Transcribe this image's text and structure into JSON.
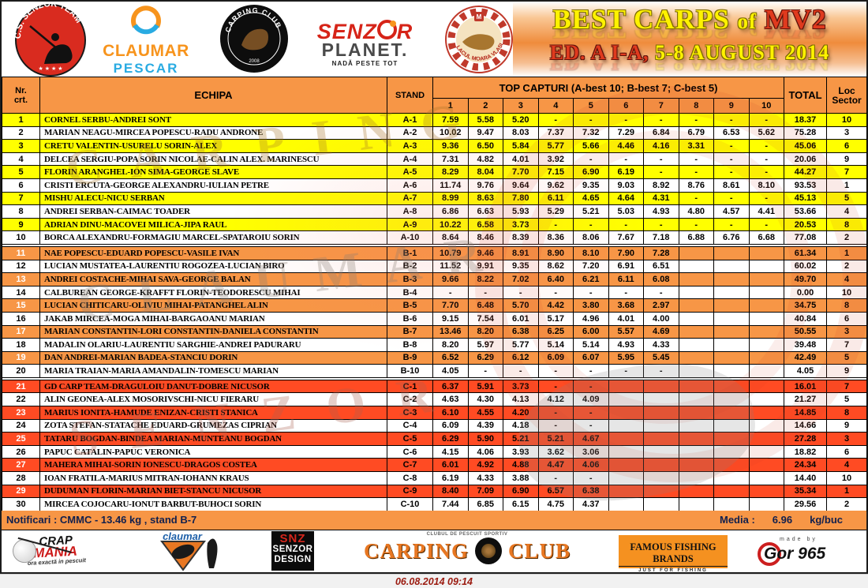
{
  "header": {
    "logos": {
      "senzor_team": {
        "arc_text": "C.S. SENZOR TEAM",
        "stars": "★ ★ ★ ★"
      },
      "claumar": {
        "line1": "CLAUMAR",
        "line2": "PESCAR"
      },
      "carping_club": {
        "arc_text": "CARPING CLUB",
        "year": "2008"
      },
      "senzor_planet": {
        "part1": "SENZ",
        "part2": "R",
        "line2": "PLANET.",
        "tagline": "NADĂ PESTE TOT"
      },
      "moara_vlasiei": {
        "arc_text": "LACUL MOARA VLASIEI 2"
      }
    },
    "title": {
      "line1_main": "BEST CARPS",
      "line1_of": "of",
      "line1_mv2": "MV2",
      "line2_red": "ED. A I-A,",
      "line2_yellow": "5-8 AUGUST 2014"
    }
  },
  "table": {
    "headers": {
      "nr": "Nr.\ncrt.",
      "echipa": "ECHIPA",
      "stand": "STAND",
      "top_capturi": "TOP CAPTURI (A-best 10; B-best 7; C-best 5)",
      "catch_cols": [
        "1",
        "2",
        "3",
        "4",
        "5",
        "6",
        "7",
        "8",
        "9",
        "10"
      ],
      "total": "TOTAL",
      "loc": "Loc\nSector"
    },
    "rows": [
      {
        "nr": "1",
        "team": "CORNEL SERBU-ANDREI SONT",
        "stand": "A-1",
        "c": [
          "7.59",
          "5.58",
          "5.20",
          "-",
          "-",
          "-",
          "-",
          "-",
          "-",
          "-"
        ],
        "total": "18.37",
        "loc": "10",
        "section": "A"
      },
      {
        "nr": "2",
        "team": "MARIAN NEAGU-MIRCEA POPESCU-RADU ANDRONE",
        "stand": "A-2",
        "c": [
          "10.02",
          "9.47",
          "8.03",
          "7.37",
          "7.32",
          "7.29",
          "6.84",
          "6.79",
          "6.53",
          "5.62"
        ],
        "total": "75.28",
        "loc": "3",
        "section": "A"
      },
      {
        "nr": "3",
        "team": "CRETU VALENTIN-USURELU SORIN-ALEX",
        "stand": "A-3",
        "c": [
          "9.36",
          "6.50",
          "5.84",
          "5.77",
          "5.66",
          "4.46",
          "4.16",
          "3.31",
          "-",
          "-"
        ],
        "total": "45.06",
        "loc": "6",
        "section": "A"
      },
      {
        "nr": "4",
        "team": "DELCEA SERGIU-POPA SORIN NICOLAE-CALIN ALEX. MARINESCU",
        "stand": "A-4",
        "c": [
          "7.31",
          "4.82",
          "4.01",
          "3.92",
          "-",
          "-",
          "-",
          "-",
          "-",
          "-"
        ],
        "total": "20.06",
        "loc": "9",
        "section": "A"
      },
      {
        "nr": "5",
        "team": "FLORIN ARANGHEL-ION SIMA-GEORGE SLAVE",
        "stand": "A-5",
        "c": [
          "8.29",
          "8.04",
          "7.70",
          "7.15",
          "6.90",
          "6.19",
          "-",
          "-",
          "-",
          "-"
        ],
        "total": "44.27",
        "loc": "7",
        "section": "A"
      },
      {
        "nr": "6",
        "team": "CRISTI ERCUTA-GEORGE ALEXANDRU-IULIAN PETRE",
        "stand": "A-6",
        "c": [
          "11.74",
          "9.76",
          "9.64",
          "9.62",
          "9.35",
          "9.03",
          "8.92",
          "8.76",
          "8.61",
          "8.10"
        ],
        "total": "93.53",
        "loc": "1",
        "section": "A"
      },
      {
        "nr": "7",
        "team": "MISHU ALECU-NICU SERBAN",
        "stand": "A-7",
        "c": [
          "8.99",
          "8.63",
          "7.80",
          "6.11",
          "4.65",
          "4.64",
          "4.31",
          "-",
          "-",
          "-"
        ],
        "total": "45.13",
        "loc": "5",
        "section": "A"
      },
      {
        "nr": "8",
        "team": "ANDREI SERBAN-CAIMAC TOADER",
        "stand": "A-8",
        "c": [
          "6.86",
          "6.63",
          "5.93",
          "5.29",
          "5.21",
          "5.03",
          "4.93",
          "4.80",
          "4.57",
          "4.41"
        ],
        "total": "53.66",
        "loc": "4",
        "section": "A"
      },
      {
        "nr": "9",
        "team": "ADRIAN DINU-MACOVEI MILICA-JIPA RAUL",
        "stand": "A-9",
        "c": [
          "10.22",
          "6.58",
          "3.73",
          "-",
          "-",
          "-",
          "-",
          "-",
          "-",
          "-"
        ],
        "total": "20.53",
        "loc": "8",
        "section": "A"
      },
      {
        "nr": "10",
        "team": "BORCA ALEXANDRU-FORMAGIU MARCEL-SPATAROIU SORIN",
        "stand": "A-10",
        "c": [
          "8.64",
          "8.46",
          "8.39",
          "8.36",
          "8.06",
          "7.67",
          "7.18",
          "6.88",
          "6.76",
          "6.68"
        ],
        "total": "77.08",
        "loc": "2",
        "section": "A"
      },
      {
        "nr": "11",
        "team": "NAE POPESCU-EDUARD POPESCU-VASILE IVAN",
        "stand": "B-1",
        "c": [
          "10.79",
          "9.46",
          "8.91",
          "8.90",
          "8.10",
          "7.90",
          "7.28",
          "",
          "",
          ""
        ],
        "total": "61.34",
        "loc": "1",
        "section": "B"
      },
      {
        "nr": "12",
        "team": "LUCIAN MUSTATEA-LAURENTIU ROGOZEA-LUCIAN BIRO",
        "stand": "B-2",
        "c": [
          "11.52",
          "9.91",
          "9.35",
          "8.62",
          "7.20",
          "6.91",
          "6.51",
          "",
          "",
          ""
        ],
        "total": "60.02",
        "loc": "2",
        "section": "B"
      },
      {
        "nr": "13",
        "team": "ANDREI COSTACHE-MIHAI SAVA-GEORGE BALAN",
        "stand": "B-3",
        "c": [
          "9.66",
          "8.22",
          "7.02",
          "6.40",
          "6.21",
          "6.11",
          "6.08",
          "",
          "",
          ""
        ],
        "total": "49.70",
        "loc": "4",
        "section": "B"
      },
      {
        "nr": "14",
        "team": "CALBUREAN GEORGE-KRAFFT FLORIN-TEODORESCU MIHAI",
        "stand": "B-4",
        "c": [
          "-",
          "-",
          "-",
          "-",
          "-",
          "-",
          "-",
          "",
          "",
          ""
        ],
        "total": "0.00",
        "loc": "10",
        "section": "B"
      },
      {
        "nr": "15",
        "team": "LUCIAN CHITICARU-OLIVIU MIHAI-PATANGHEL ALIN",
        "stand": "B-5",
        "c": [
          "7.70",
          "6.48",
          "5.70",
          "4.42",
          "3.80",
          "3.68",
          "2.97",
          "",
          "",
          ""
        ],
        "total": "34.75",
        "loc": "8",
        "section": "B"
      },
      {
        "nr": "16",
        "team": "JAKAB MIRCEA-MOGA MIHAI-BARGAOANU MARIAN",
        "stand": "B-6",
        "c": [
          "9.15",
          "7.54",
          "6.01",
          "5.17",
          "4.96",
          "4.01",
          "4.00",
          "",
          "",
          ""
        ],
        "total": "40.84",
        "loc": "6",
        "section": "B"
      },
      {
        "nr": "17",
        "team": "MARIAN CONSTANTIN-LORI CONSTANTIN-DANIELA CONSTANTIN",
        "stand": "B-7",
        "c": [
          "13.46",
          "8.20",
          "6.38",
          "6.25",
          "6.00",
          "5.57",
          "4.69",
          "",
          "",
          ""
        ],
        "total": "50.55",
        "loc": "3",
        "section": "B"
      },
      {
        "nr": "18",
        "team": "MADALIN OLARIU-LAURENTIU SARGHIE-ANDREI PADURARU",
        "stand": "B-8",
        "c": [
          "8.20",
          "5.97",
          "5.77",
          "5.14",
          "5.14",
          "4.93",
          "4.33",
          "",
          "",
          ""
        ],
        "total": "39.48",
        "loc": "7",
        "section": "B"
      },
      {
        "nr": "19",
        "team": "DAN ANDREI-MARIAN BADEA-STANCIU DORIN",
        "stand": "B-9",
        "c": [
          "6.52",
          "6.29",
          "6.12",
          "6.09",
          "6.07",
          "5.95",
          "5.45",
          "",
          "",
          ""
        ],
        "total": "42.49",
        "loc": "5",
        "section": "B"
      },
      {
        "nr": "20",
        "team": "MARIA TRAIAN-MARIA AMANDALIN-TOMESCU MARIAN",
        "stand": "B-10",
        "c": [
          "4.05",
          "-",
          "-",
          "-",
          "-",
          "-",
          "-",
          "",
          "",
          ""
        ],
        "total": "4.05",
        "loc": "9",
        "section": "B"
      },
      {
        "nr": "21",
        "team": "GD CARP TEAM-DRAGULOIU DANUT-DOBRE NICUSOR",
        "stand": "C-1",
        "c": [
          "6.37",
          "5.91",
          "3.73",
          "-",
          "-",
          "",
          "",
          "",
          "",
          ""
        ],
        "total": "16.01",
        "loc": "7",
        "section": "C"
      },
      {
        "nr": "22",
        "team": "ALIN GEONEA-ALEX MOSORIVSCHI-NICU FIERARU",
        "stand": "C-2",
        "c": [
          "4.63",
          "4.30",
          "4.13",
          "4.12",
          "4.09",
          "",
          "",
          "",
          "",
          ""
        ],
        "total": "21.27",
        "loc": "5",
        "section": "C"
      },
      {
        "nr": "23",
        "team": "MARIUS IONITA-HAMUDE ENIZAN-CRISTI STANICA",
        "stand": "C-3",
        "c": [
          "6.10",
          "4.55",
          "4.20",
          "-",
          "-",
          "",
          "",
          "",
          "",
          ""
        ],
        "total": "14.85",
        "loc": "8",
        "section": "C"
      },
      {
        "nr": "24",
        "team": "ZOTA STEFAN-STATACHE EDUARD-GRUMEZAS CIPRIAN",
        "stand": "C-4",
        "c": [
          "6.09",
          "4.39",
          "4.18",
          "-",
          "-",
          "",
          "",
          "",
          "",
          ""
        ],
        "total": "14.66",
        "loc": "9",
        "section": "C"
      },
      {
        "nr": "25",
        "team": "TATARU BOGDAN-BINDEA MARIAN-MUNTEANU BOGDAN",
        "stand": "C-5",
        "c": [
          "6.29",
          "5.90",
          "5.21",
          "5.21",
          "4.67",
          "",
          "",
          "",
          "",
          ""
        ],
        "total": "27.28",
        "loc": "3",
        "section": "C"
      },
      {
        "nr": "26",
        "team": "PAPUC CATALIN-PAPUC VERONICA",
        "stand": "C-6",
        "c": [
          "4.15",
          "4.06",
          "3.93",
          "3.62",
          "3.06",
          "",
          "",
          "",
          "",
          ""
        ],
        "total": "18.82",
        "loc": "6",
        "section": "C"
      },
      {
        "nr": "27",
        "team": "MAHERA MIHAI-SORIN IONESCU-DRAGOS COSTEA",
        "stand": "C-7",
        "c": [
          "6.01",
          "4.92",
          "4.88",
          "4.47",
          "4.06",
          "",
          "",
          "",
          "",
          ""
        ],
        "total": "24.34",
        "loc": "4",
        "section": "C"
      },
      {
        "nr": "28",
        "team": "IOAN FRATILA-MARIUS MITRAN-IOHANN KRAUS",
        "stand": "C-8",
        "c": [
          "6.19",
          "4.33",
          "3.88",
          "-",
          "-",
          "",
          "",
          "",
          "",
          ""
        ],
        "total": "14.40",
        "loc": "10",
        "section": "C"
      },
      {
        "nr": "29",
        "team": "DUDUMAN FLORIN-MARIAN BIET-STANCU NICUSOR",
        "stand": "C-9",
        "c": [
          "8.40",
          "7.09",
          "6.90",
          "6.57",
          "6.38",
          "",
          "",
          "",
          "",
          ""
        ],
        "total": "35.34",
        "loc": "1",
        "section": "C"
      },
      {
        "nr": "30",
        "team": "MIRCEA COJOCARU-IONUT BARBUT-BUHOCI SORIN",
        "stand": "C-10",
        "c": [
          "7.44",
          "6.85",
          "6.15",
          "4.75",
          "4.37",
          "",
          "",
          "",
          "",
          ""
        ],
        "total": "29.56",
        "loc": "2",
        "section": "C"
      }
    ]
  },
  "notifications": {
    "text": "Notificari : CMMC -  13.46 kg , stand B-7",
    "media_label": "Media :",
    "media_value": "6.96",
    "media_unit": "kg/buc"
  },
  "footer": {
    "crapmania": {
      "line1": "CRAP",
      "line2": "MANIA",
      "tagline": "ora exactă in pescuit"
    },
    "claumar_badge": {
      "text": "claumar"
    },
    "snz": {
      "line1": "SNZ",
      "line2": "SENZOR",
      "line3": "DESIGN"
    },
    "carping": {
      "sub": "CLUBUL DE PESCUIT SPORTIV",
      "left": "CARPING",
      "right": "CLUB"
    },
    "famous": {
      "line1": "FAMOUS FISHING BRANDS",
      "line2": "JUST FOR FISHING"
    },
    "gor": {
      "pre": "made by",
      "name": "Gor 965"
    }
  },
  "date_stamp": "06.08.2014 09:14",
  "watermarks": {
    "wm1": "CARPING",
    "wm2": "CLAUMAR",
    "wm3": "SENZOR"
  },
  "colors": {
    "header_orange": "#F79646",
    "section_a_yellow": "#FFFF00",
    "section_b_orange": "#F79646",
    "section_c_red": "#FF4B23",
    "title_yellow": "#FFF200",
    "title_red": "#E03A1E",
    "date_red": "#9b1b10",
    "notif_text": "#12204d"
  }
}
